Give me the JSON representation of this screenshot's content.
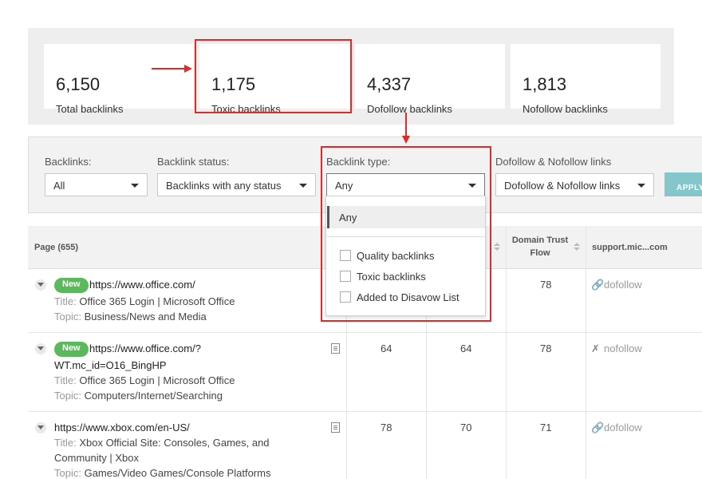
{
  "stats": [
    {
      "value": "6,150",
      "label": "Total backlinks"
    },
    {
      "value": "1,175",
      "label": "Toxic backlinks"
    },
    {
      "value": "4,337",
      "label": "Dofollow backlinks"
    },
    {
      "value": "1,813",
      "label": "Nofollow backlinks"
    }
  ],
  "filters": {
    "backlinks": {
      "label": "Backlinks:",
      "value": "All"
    },
    "status": {
      "label": "Backlink status:",
      "value": "Backlinks with any status"
    },
    "type": {
      "label": "Backlink type:",
      "value": "Any"
    },
    "follow": {
      "label": "Dofollow & Nofollow links",
      "value": "Dofollow & Nofollow links"
    },
    "apply_label": "APPLY"
  },
  "dropdown": {
    "selected": "Any",
    "options": [
      "Quality backlinks",
      "Toxic backlinks",
      "Added to Disavow List"
    ]
  },
  "table": {
    "headers": {
      "page": "Page (655)",
      "trust_flow_1": "Domain Trust",
      "trust_flow_2": "Flow",
      "site": "support.mic...com"
    },
    "rows": [
      {
        "badge": "New",
        "url": "https://www.office.com/",
        "url2": "",
        "title_key": "Title:",
        "title": "Office 365 Login | Microsoft Office",
        "title2": "",
        "topic_key": "Topic:",
        "topic": "Business/News and Media",
        "c1": "",
        "c2": "",
        "c3": "78",
        "link": "dofollow"
      },
      {
        "badge": "New",
        "url": "https://www.office.com/?",
        "url2": "WT.mc_id=O16_BingHP",
        "title_key": "Title:",
        "title": "Office 365 Login | Microsoft Office",
        "title2": "",
        "topic_key": "Topic:",
        "topic": "Computers/Internet/Searching",
        "c1": "64",
        "c2": "64",
        "c3": "78",
        "link": "nofollow"
      },
      {
        "badge": "",
        "url": "https://www.xbox.com/en-US/",
        "url2": "",
        "title_key": "Title:",
        "title": "Xbox Official Site: Consoles, Games, and",
        "title2": "Community | Xbox",
        "topic_key": "Topic:",
        "topic": "Games/Video Games/Console Platforms",
        "c1": "78",
        "c2": "70",
        "c3": "71",
        "link": "dofollow"
      }
    ]
  },
  "colors": {
    "annotation": "#e02a2a",
    "badge_new": "#5cb85c",
    "apply": "#84c6cc",
    "dofollow_icon": "#7cc242"
  }
}
